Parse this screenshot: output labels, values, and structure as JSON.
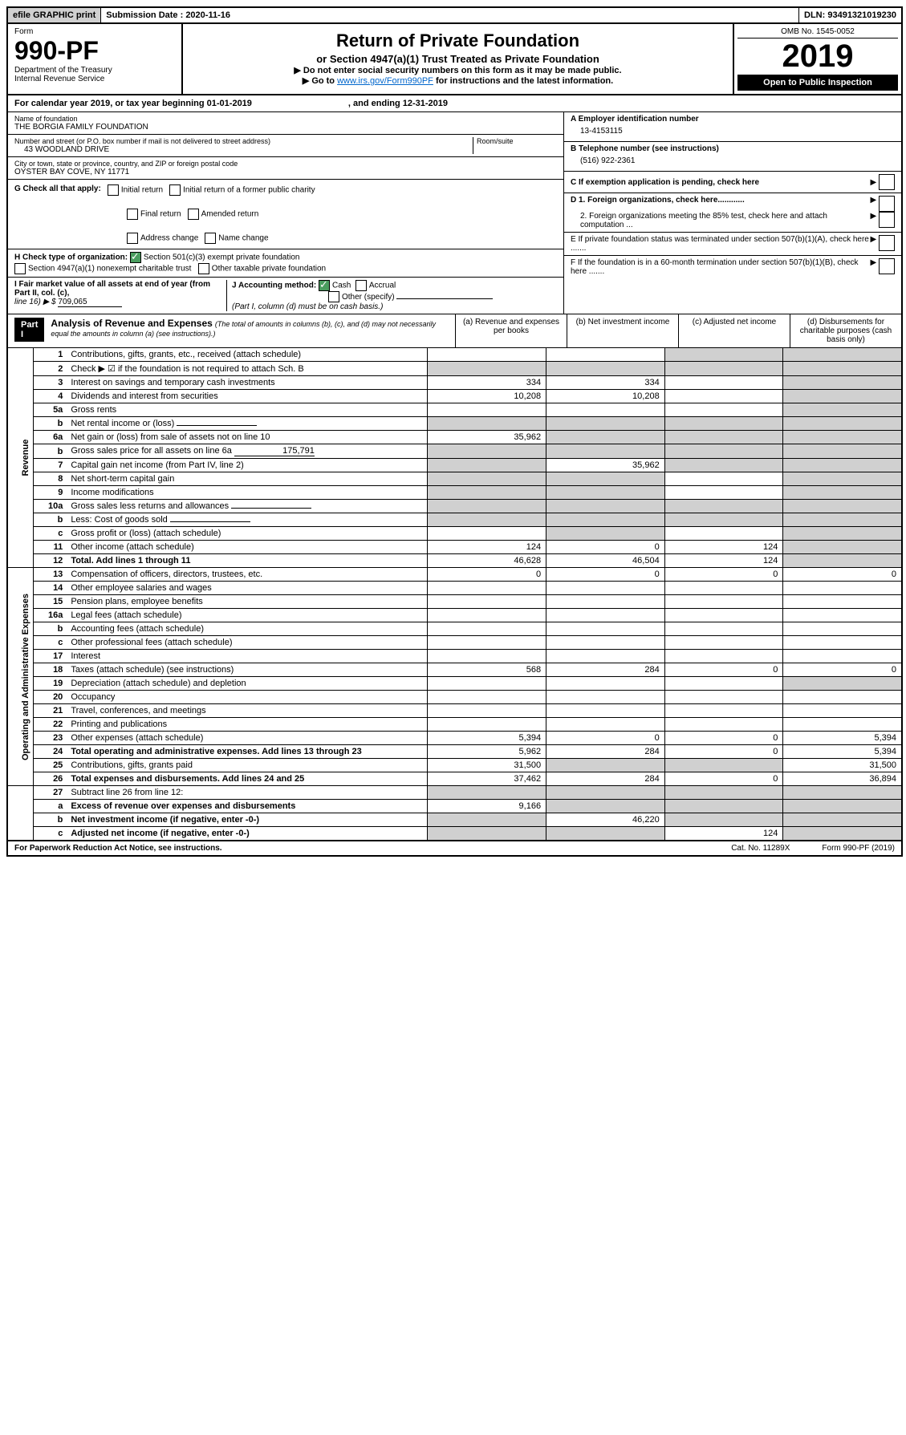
{
  "top": {
    "efile": "efile GRAPHIC print",
    "submission_label": "Submission Date : 2020-11-16",
    "dln": "DLN: 93491321019230"
  },
  "header": {
    "form_word": "Form",
    "form_num": "990-PF",
    "dept": "Department of the Treasury",
    "irs": "Internal Revenue Service",
    "title": "Return of Private Foundation",
    "subtitle": "or Section 4947(a)(1) Trust Treated as Private Foundation",
    "instr1": "▶ Do not enter social security numbers on this form as it may be made public.",
    "instr2_pre": "▶ Go to ",
    "instr2_link": "www.irs.gov/Form990PF",
    "instr2_post": " for instructions and the latest information.",
    "omb": "OMB No. 1545-0052",
    "year": "2019",
    "inspection": "Open to Public Inspection"
  },
  "cal_year": {
    "text": "For calendar year 2019, or tax year beginning 01-01-2019",
    "ending": ", and ending 12-31-2019"
  },
  "entity": {
    "name_label": "Name of foundation",
    "name": "THE BORGIA FAMILY FOUNDATION",
    "addr_label": "Number and street (or P.O. box number if mail is not delivered to street address)",
    "addr": "43 WOODLAND DRIVE",
    "room_label": "Room/suite",
    "city_label": "City or town, state or province, country, and ZIP or foreign postal code",
    "city": "OYSTER BAY COVE, NY  11771",
    "a_label": "A Employer identification number",
    "ein": "13-4153115",
    "b_label": "B Telephone number (see instructions)",
    "phone": "(516) 922-2361",
    "c_label": "C If exemption application is pending, check here",
    "d1": "D 1. Foreign organizations, check here............",
    "d2": "2. Foreign organizations meeting the 85% test, check here and attach computation ...",
    "e": "E  If private foundation status was terminated under section 507(b)(1)(A), check here .......",
    "f": "F  If the foundation is in a 60-month termination under section 507(b)(1)(B), check here ......."
  },
  "g": {
    "label": "G Check all that apply:",
    "opts": [
      "Initial return",
      "Final return",
      "Address change",
      "Initial return of a former public charity",
      "Amended return",
      "Name change"
    ]
  },
  "h": {
    "label": "H Check type of organization:",
    "opt1": "Section 501(c)(3) exempt private foundation",
    "opt2": "Section 4947(a)(1) nonexempt charitable trust",
    "opt3": "Other taxable private foundation"
  },
  "i": {
    "label": "I Fair market value of all assets at end of year (from Part II, col. (c),",
    "line16": "line 16) ▶ $ ",
    "value": "709,065"
  },
  "j": {
    "label": "J Accounting method:",
    "cash": "Cash",
    "accrual": "Accrual",
    "other": "Other (specify)",
    "note": "(Part I, column (d) must be on cash basis.)"
  },
  "part1": {
    "label": "Part I",
    "title": "Analysis of Revenue and Expenses",
    "subtitle": "(The total of amounts in columns (b), (c), and (d) may not necessarily equal the amounts in column (a) (see instructions).)",
    "col_a": "(a)   Revenue and expenses per books",
    "col_b": "(b)   Net investment income",
    "col_c": "(c)   Adjusted net income",
    "col_d": "(d)   Disbursements for charitable purposes (cash basis only)"
  },
  "side": {
    "revenue": "Revenue",
    "expenses": "Operating and Administrative Expenses"
  },
  "rows": [
    {
      "n": "1",
      "d": "Contributions, gifts, grants, etc., received (attach schedule)",
      "a": "",
      "b": "",
      "c": "",
      "dd": "",
      "bshade": false,
      "cshade": true,
      "dshade": true
    },
    {
      "n": "2",
      "d": "Check ▶ ☑ if the foundation is not required to attach Sch. B",
      "a": "",
      "b": "",
      "c": "",
      "dd": "",
      "ashade": true,
      "bshade": true,
      "cshade": true,
      "dshade": true
    },
    {
      "n": "3",
      "d": "Interest on savings and temporary cash investments",
      "a": "334",
      "b": "334",
      "c": "",
      "dd": "",
      "dshade": true
    },
    {
      "n": "4",
      "d": "Dividends and interest from securities",
      "a": "10,208",
      "b": "10,208",
      "c": "",
      "dd": "",
      "dshade": true
    },
    {
      "n": "5a",
      "d": "Gross rents",
      "a": "",
      "b": "",
      "c": "",
      "dd": "",
      "dshade": true
    },
    {
      "n": "b",
      "d": "Net rental income or (loss)",
      "a": "",
      "b": "",
      "c": "",
      "dd": "",
      "ashade": true,
      "bshade": true,
      "cshade": true,
      "dshade": true,
      "inline": true
    },
    {
      "n": "6a",
      "d": "Net gain or (loss) from sale of assets not on line 10",
      "a": "35,962",
      "b": "",
      "c": "",
      "dd": "",
      "bshade": true,
      "cshade": true,
      "dshade": true
    },
    {
      "n": "b",
      "d": "Gross sales price for all assets on line 6a ",
      "a": "",
      "b": "",
      "c": "",
      "dd": "",
      "ashade": true,
      "bshade": true,
      "cshade": true,
      "dshade": true,
      "inline": true,
      "inline_val": "175,791"
    },
    {
      "n": "7",
      "d": "Capital gain net income (from Part IV, line 2)",
      "a": "",
      "b": "35,962",
      "c": "",
      "dd": "",
      "ashade": true,
      "cshade": true,
      "dshade": true
    },
    {
      "n": "8",
      "d": "Net short-term capital gain",
      "a": "",
      "b": "",
      "c": "",
      "dd": "",
      "ashade": true,
      "bshade": true,
      "dshade": true
    },
    {
      "n": "9",
      "d": "Income modifications",
      "a": "",
      "b": "",
      "c": "",
      "dd": "",
      "ashade": true,
      "bshade": true,
      "dshade": true
    },
    {
      "n": "10a",
      "d": "Gross sales less returns and allowances",
      "a": "",
      "b": "",
      "c": "",
      "dd": "",
      "ashade": true,
      "bshade": true,
      "cshade": true,
      "dshade": true,
      "inline": true
    },
    {
      "n": "b",
      "d": "Less: Cost of goods sold",
      "a": "",
      "b": "",
      "c": "",
      "dd": "",
      "ashade": true,
      "bshade": true,
      "cshade": true,
      "dshade": true,
      "inline": true
    },
    {
      "n": "c",
      "d": "Gross profit or (loss) (attach schedule)",
      "a": "",
      "b": "",
      "c": "",
      "dd": "",
      "bshade": true,
      "dshade": true
    },
    {
      "n": "11",
      "d": "Other income (attach schedule)",
      "a": "124",
      "b": "0",
      "c": "124",
      "dd": "",
      "dshade": true
    },
    {
      "n": "12",
      "d": "Total. Add lines 1 through 11",
      "a": "46,628",
      "b": "46,504",
      "c": "124",
      "dd": "",
      "dshade": true,
      "bold": true
    }
  ],
  "exp_rows": [
    {
      "n": "13",
      "d": "Compensation of officers, directors, trustees, etc.",
      "a": "0",
      "b": "0",
      "c": "0",
      "dd": "0"
    },
    {
      "n": "14",
      "d": "Other employee salaries and wages",
      "a": "",
      "b": "",
      "c": "",
      "dd": ""
    },
    {
      "n": "15",
      "d": "Pension plans, employee benefits",
      "a": "",
      "b": "",
      "c": "",
      "dd": ""
    },
    {
      "n": "16a",
      "d": "Legal fees (attach schedule)",
      "a": "",
      "b": "",
      "c": "",
      "dd": ""
    },
    {
      "n": "b",
      "d": "Accounting fees (attach schedule)",
      "a": "",
      "b": "",
      "c": "",
      "dd": ""
    },
    {
      "n": "c",
      "d": "Other professional fees (attach schedule)",
      "a": "",
      "b": "",
      "c": "",
      "dd": ""
    },
    {
      "n": "17",
      "d": "Interest",
      "a": "",
      "b": "",
      "c": "",
      "dd": ""
    },
    {
      "n": "18",
      "d": "Taxes (attach schedule) (see instructions)",
      "a": "568",
      "b": "284",
      "c": "0",
      "dd": "0"
    },
    {
      "n": "19",
      "d": "Depreciation (attach schedule) and depletion",
      "a": "",
      "b": "",
      "c": "",
      "dd": "",
      "dshade": true
    },
    {
      "n": "20",
      "d": "Occupancy",
      "a": "",
      "b": "",
      "c": "",
      "dd": ""
    },
    {
      "n": "21",
      "d": "Travel, conferences, and meetings",
      "a": "",
      "b": "",
      "c": "",
      "dd": ""
    },
    {
      "n": "22",
      "d": "Printing and publications",
      "a": "",
      "b": "",
      "c": "",
      "dd": ""
    },
    {
      "n": "23",
      "d": "Other expenses (attach schedule)",
      "a": "5,394",
      "b": "0",
      "c": "0",
      "dd": "5,394"
    },
    {
      "n": "24",
      "d": "Total operating and administrative expenses. Add lines 13 through 23",
      "a": "5,962",
      "b": "284",
      "c": "0",
      "dd": "5,394",
      "bold": true
    },
    {
      "n": "25",
      "d": "Contributions, gifts, grants paid",
      "a": "31,500",
      "b": "",
      "c": "",
      "dd": "31,500",
      "bshade": true,
      "cshade": true
    },
    {
      "n": "26",
      "d": "Total expenses and disbursements. Add lines 24 and 25",
      "a": "37,462",
      "b": "284",
      "c": "0",
      "dd": "36,894",
      "bold": true
    }
  ],
  "sub_rows": [
    {
      "n": "27",
      "d": "Subtract line 26 from line 12:",
      "a": "",
      "b": "",
      "c": "",
      "dd": "",
      "ashade": true,
      "bshade": true,
      "cshade": true,
      "dshade": true
    },
    {
      "n": "a",
      "d": "Excess of revenue over expenses and disbursements",
      "a": "9,166",
      "b": "",
      "c": "",
      "dd": "",
      "bshade": true,
      "cshade": true,
      "dshade": true,
      "bold": true
    },
    {
      "n": "b",
      "d": "Net investment income (if negative, enter -0-)",
      "a": "",
      "b": "46,220",
      "c": "",
      "dd": "",
      "ashade": true,
      "cshade": true,
      "dshade": true,
      "bold": true
    },
    {
      "n": "c",
      "d": "Adjusted net income (if negative, enter -0-)",
      "a": "",
      "b": "",
      "c": "124",
      "dd": "",
      "ashade": true,
      "bshade": true,
      "dshade": true,
      "bold": true
    }
  ],
  "footer": {
    "left": "For Paperwork Reduction Act Notice, see instructions.",
    "cat": "Cat. No. 11289X",
    "right": "Form 990-PF (2019)"
  }
}
